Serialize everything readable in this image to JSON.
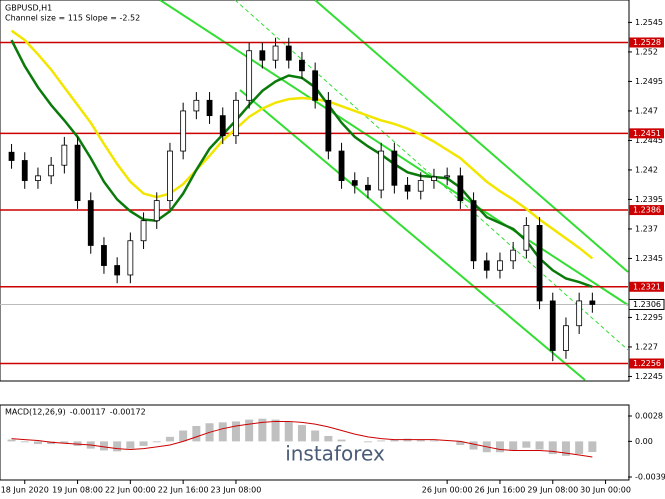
{
  "chart_data": [
    {
      "type": "candlestick",
      "symbol": "GBPUSD,H1",
      "subtitle": "Channel size = 115 Slope = -2.52",
      "watermark": "instaforex",
      "x": [
        2,
        6,
        10,
        14,
        18,
        22,
        26,
        30,
        34,
        38,
        42,
        46,
        50,
        54,
        58,
        62,
        66,
        70,
        74,
        78,
        82,
        86,
        90,
        94,
        98,
        102,
        106,
        110,
        114,
        118,
        122,
        126,
        130,
        134,
        138,
        142,
        146,
        150,
        154,
        158,
        162,
        166,
        170,
        174,
        178
      ],
      "open": [
        1.2435,
        1.2428,
        1.2411,
        1.2415,
        1.2424,
        1.2441,
        1.2394,
        1.2356,
        1.2339,
        1.2331,
        1.236,
        1.2377,
        1.2394,
        1.2436,
        1.247,
        1.2479,
        1.2466,
        1.2449,
        1.2479,
        1.2521,
        1.2513,
        1.2525,
        1.2513,
        1.2504,
        1.2479,
        1.2436,
        1.2411,
        1.2407,
        1.2403,
        1.2436,
        1.2407,
        1.2402,
        1.2411,
        1.2414,
        1.2415,
        1.2394,
        1.2343,
        1.2335,
        1.2343,
        1.2352,
        1.2373,
        1.2309,
        1.2267,
        1.2288,
        1.2309
      ],
      "high": [
        1.2442,
        1.2435,
        1.2422,
        1.2431,
        1.2448,
        1.2448,
        1.2401,
        1.2363,
        1.2346,
        1.2367,
        1.2384,
        1.2401,
        1.2443,
        1.2477,
        1.2486,
        1.2486,
        1.2473,
        1.2486,
        1.2528,
        1.2528,
        1.2532,
        1.2532,
        1.252,
        1.2511,
        1.2486,
        1.2443,
        1.2418,
        1.2414,
        1.2443,
        1.2443,
        1.2414,
        1.2418,
        1.2421,
        1.2422,
        1.2422,
        1.2401,
        1.235,
        1.235,
        1.2359,
        1.238,
        1.238,
        1.2316,
        1.2295,
        1.2316,
        1.2316
      ],
      "low": [
        1.2421,
        1.2404,
        1.2404,
        1.2408,
        1.2417,
        1.2387,
        1.2349,
        1.2332,
        1.2324,
        1.2324,
        1.2353,
        1.237,
        1.2387,
        1.2429,
        1.2463,
        1.2459,
        1.2442,
        1.2442,
        1.2472,
        1.2506,
        1.2506,
        1.2506,
        1.2497,
        1.2472,
        1.2429,
        1.2404,
        1.24,
        1.2396,
        1.2396,
        1.24,
        1.2395,
        1.2395,
        1.2404,
        1.2407,
        1.2387,
        1.2336,
        1.2328,
        1.2328,
        1.2336,
        1.2345,
        1.2302,
        1.2258,
        1.226,
        1.2281,
        1.2299
      ],
      "close": [
        1.2428,
        1.2411,
        1.2415,
        1.2424,
        1.2441,
        1.2394,
        1.2356,
        1.2339,
        1.2331,
        1.236,
        1.2377,
        1.2394,
        1.2436,
        1.247,
        1.2479,
        1.2466,
        1.2449,
        1.2479,
        1.2521,
        1.2513,
        1.2525,
        1.2513,
        1.2504,
        1.2479,
        1.2436,
        1.2411,
        1.2407,
        1.2403,
        1.2436,
        1.2407,
        1.2402,
        1.2411,
        1.2414,
        1.2415,
        1.2394,
        1.2343,
        1.2335,
        1.2343,
        1.2352,
        1.2373,
        1.2309,
        1.2267,
        1.2288,
        1.2309,
        1.2306
      ],
      "series": [
        {
          "color": "#f2e600",
          "values": [
            1.2538,
            1.253,
            1.2518,
            1.2505,
            1.249,
            1.2475,
            1.246,
            1.2442,
            1.2425,
            1.241,
            1.24,
            1.2397,
            1.24,
            1.2408,
            1.242,
            1.2432,
            1.2445,
            1.2455,
            1.2465,
            1.2472,
            1.2477,
            1.248,
            1.2481,
            1.248,
            1.2478,
            1.2474,
            1.247,
            1.2466,
            1.2462,
            1.2459,
            1.2455,
            1.245,
            1.2444,
            1.2437,
            1.243,
            1.242,
            1.241,
            1.2402,
            1.2395,
            1.2387,
            1.2378,
            1.237,
            1.2362,
            1.2354,
            1.2345
          ]
        },
        {
          "color": "#0a7a0a",
          "values": [
            1.253,
            1.2508,
            1.249,
            1.2475,
            1.2462,
            1.2448,
            1.243,
            1.241,
            1.2395,
            1.2385,
            1.2378,
            1.2377,
            1.2385,
            1.24,
            1.242,
            1.2438,
            1.245,
            1.2462,
            1.2475,
            1.2487,
            1.2495,
            1.25,
            1.2498,
            1.249,
            1.2475,
            1.246,
            1.2448,
            1.244,
            1.2433,
            1.2425,
            1.2418,
            1.2415,
            1.2414,
            1.2413,
            1.2405,
            1.2392,
            1.238,
            1.2375,
            1.237,
            1.236,
            1.2345,
            1.2335,
            1.2328,
            1.2325,
            1.2321
          ]
        }
      ],
      "levels": [
        1.2528,
        1.2451,
        1.2386,
        1.2321,
        1.2256
      ],
      "level_color": "#cc0000",
      "current_price": 1.2306,
      "xlim": [
        -1.5,
        188.8
      ],
      "ylim": [
        1.2242,
        1.2564
      ],
      "yticks": [
        1.2545,
        1.252,
        1.2495,
        1.247,
        1.2445,
        1.242,
        1.2395,
        1.237,
        1.2345,
        1.2295,
        1.227,
        1.2245
      ],
      "xticks": [
        {
          "value": 6,
          "label": "18 Jun 2020"
        },
        {
          "value": 22,
          "label": "19 Jun 08:00"
        },
        {
          "value": 38,
          "label": "22 Jun 00:00"
        },
        {
          "value": 54,
          "label": "22 Jun 16:00"
        },
        {
          "value": 70,
          "label": "23 Jun 08:00"
        },
        {
          "value": 134,
          "label": "26 Jun 00:00"
        },
        {
          "value": 150,
          "label": "26 Jun 16:00"
        },
        {
          "value": 166,
          "label": "29 Jun 08:00"
        },
        {
          "value": 182,
          "label": "30 Jun 00:00"
        }
      ]
    },
    {
      "type": "macd",
      "title": "MACD(12,26,9)",
      "ylim": [
        -0.00393,
        0.0028
      ],
      "yticks": [
        0.0028,
        {
          "value": 0,
          "label": "0.00"
        },
        -0.00393
      ],
      "series": [
        {
          "color": "#c0c0c0",
          "values": [
            0.0002,
            -0.0001,
            -0.0003,
            -0.0003,
            -0.0002,
            -0.0005,
            -0.0008,
            -0.001,
            -0.0011,
            -0.0008,
            -0.0005,
            -0.0001,
            0.0005,
            0.0012,
            0.0017,
            0.002,
            0.0021,
            0.0022,
            0.0024,
            0.0025,
            0.0024,
            0.0022,
            0.0018,
            0.0012,
            0.0006,
            0.0002,
            0.0,
            -0.0001,
            0.0001,
            0.0002,
            0.0003,
            0.0002,
            0.0001,
            0.0,
            -0.0004,
            -0.0009,
            -0.0012,
            -0.0012,
            -0.001,
            -0.0007,
            -0.0009,
            -0.0014,
            -0.0016,
            -0.0014,
            -0.00117
          ]
        },
        {
          "color": "#cc0000",
          "values": [
            0.0003,
            0.0002,
            0.0001,
            -0.0001,
            -0.0002,
            -0.0003,
            -0.0004,
            -0.0006,
            -0.0008,
            -0.0009,
            -0.0008,
            -0.0006,
            -0.0004,
            0.0,
            0.0005,
            0.001,
            0.0014,
            0.0017,
            0.0019,
            0.0021,
            0.0022,
            0.0022,
            0.0021,
            0.0019,
            0.0016,
            0.0012,
            0.0008,
            0.0005,
            0.0003,
            0.0002,
            0.0002,
            0.0002,
            0.0002,
            0.0001,
            0.0,
            -0.0003,
            -0.0006,
            -0.0009,
            -0.001,
            -0.001,
            -0.001,
            -0.0011,
            -0.0013,
            -0.0015,
            -0.00172
          ]
        }
      ]
    }
  ]
}
